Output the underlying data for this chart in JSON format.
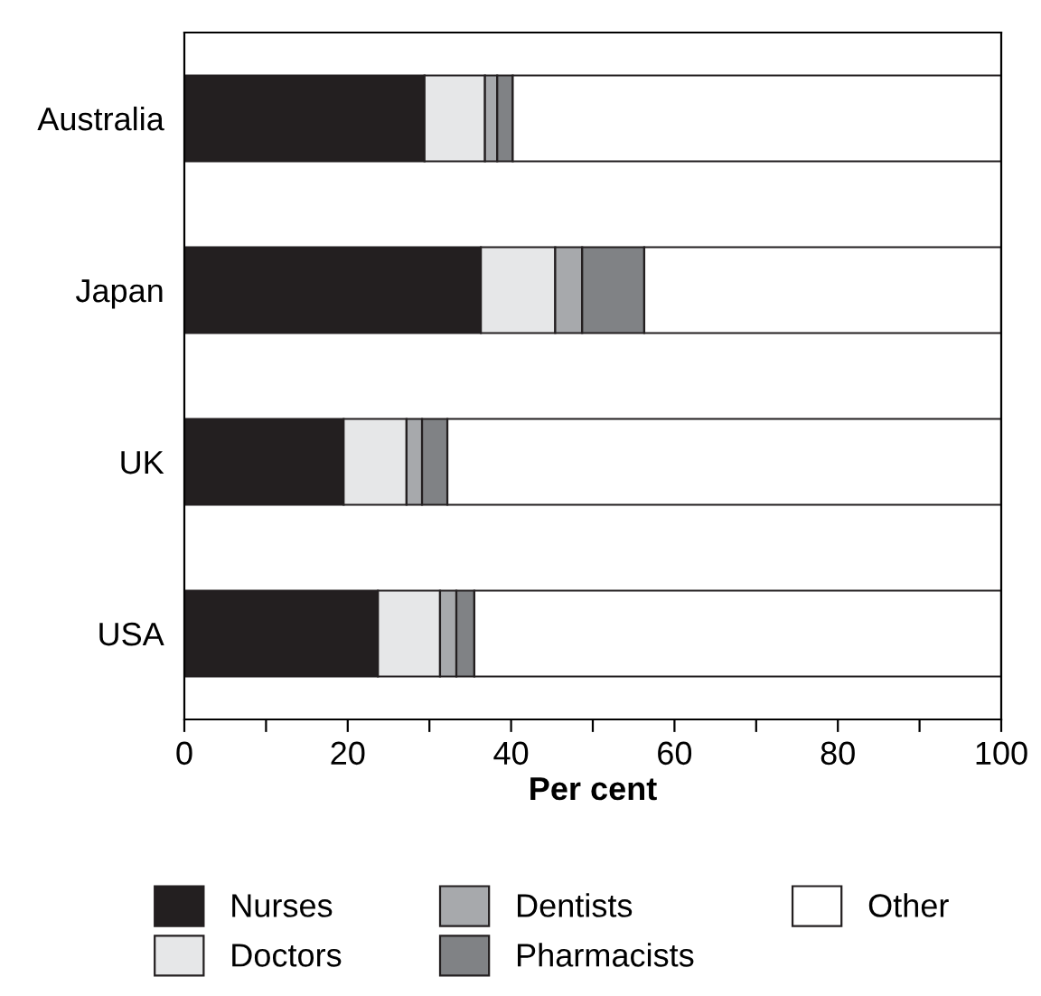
{
  "chart_data": {
    "type": "bar",
    "orientation": "horizontal",
    "stacked": true,
    "xlabel": "Per cent",
    "categories": [
      "Australia",
      "Japan",
      "UK",
      "USA"
    ],
    "series": [
      {
        "name": "Nurses",
        "color": "#231f20",
        "values": [
          29.4,
          36.3,
          19.5,
          23.7
        ]
      },
      {
        "name": "Doctors",
        "color": "#e6e7e8",
        "values": [
          7.4,
          9.1,
          7.7,
          7.6
        ]
      },
      {
        "name": "Dentists",
        "color": "#a7a9ac",
        "values": [
          1.5,
          3.3,
          1.9,
          2.0
        ]
      },
      {
        "name": "Pharmacists",
        "color": "#808285",
        "values": [
          1.9,
          7.6,
          3.1,
          2.2
        ]
      },
      {
        "name": "Other",
        "color": "#ffffff",
        "values": [
          59.8,
          43.7,
          67.8,
          64.5
        ]
      }
    ],
    "xlim": [
      0,
      100
    ],
    "xticks": [
      0,
      {
        "value": 10,
        "label": null
      },
      20,
      {
        "value": 30,
        "label": null
      },
      40,
      {
        "value": 50,
        "label": null
      },
      60,
      {
        "value": 70,
        "label": null
      },
      80,
      {
        "value": 90,
        "label": null
      },
      100
    ],
    "grid": false,
    "legend": "bottom"
  }
}
